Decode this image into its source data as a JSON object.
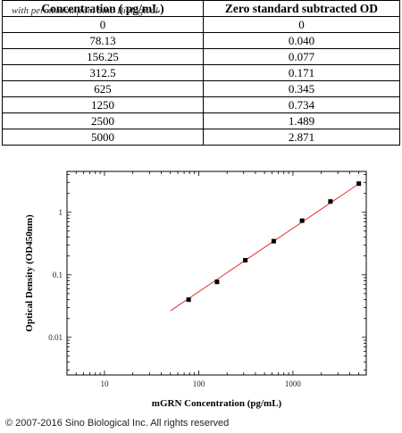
{
  "watermark": "with permission from Sino Biological",
  "table": {
    "headers": [
      "Concentration ( pg/mL)",
      "Zero standard subtracted OD"
    ],
    "rows": [
      [
        "0",
        "0"
      ],
      [
        "78.13",
        "0.040"
      ],
      [
        "156.25",
        "0.077"
      ],
      [
        "312.5",
        "0.171"
      ],
      [
        "625",
        "0.345"
      ],
      [
        "1250",
        "0.734"
      ],
      [
        "2500",
        "1.489"
      ],
      [
        "5000",
        "2.871"
      ]
    ]
  },
  "chart_data": {
    "type": "scatter",
    "xlabel": "mGRN Concentration (pg/mL)",
    "ylabel": "Optical Density (OD450nm)",
    "xscale": "log",
    "yscale": "log",
    "xlim": [
      4,
      6000
    ],
    "ylim": [
      0.0025,
      4.5
    ],
    "xticks": [
      10,
      100,
      1000
    ],
    "xtick_labels": [
      "10",
      "100",
      "1000"
    ],
    "yticks": [
      0.01,
      0.1,
      1
    ],
    "ytick_labels": [
      "0.01",
      "0.1",
      "1"
    ],
    "series": [
      {
        "x": [
          78.13,
          156.25,
          312.5,
          625,
          1250,
          2500,
          5000
        ],
        "y": [
          0.04,
          0.077,
          0.171,
          0.345,
          0.734,
          1.489,
          2.871
        ],
        "marker": "square",
        "color": "#000000"
      }
    ],
    "fit_line": {
      "x_range": [
        50,
        5000
      ],
      "y_range": [
        0.0265,
        2.85
      ],
      "color": "#e03030"
    }
  },
  "copyright": "© 2007-2016 Sino Biological Inc. All rights reserved"
}
